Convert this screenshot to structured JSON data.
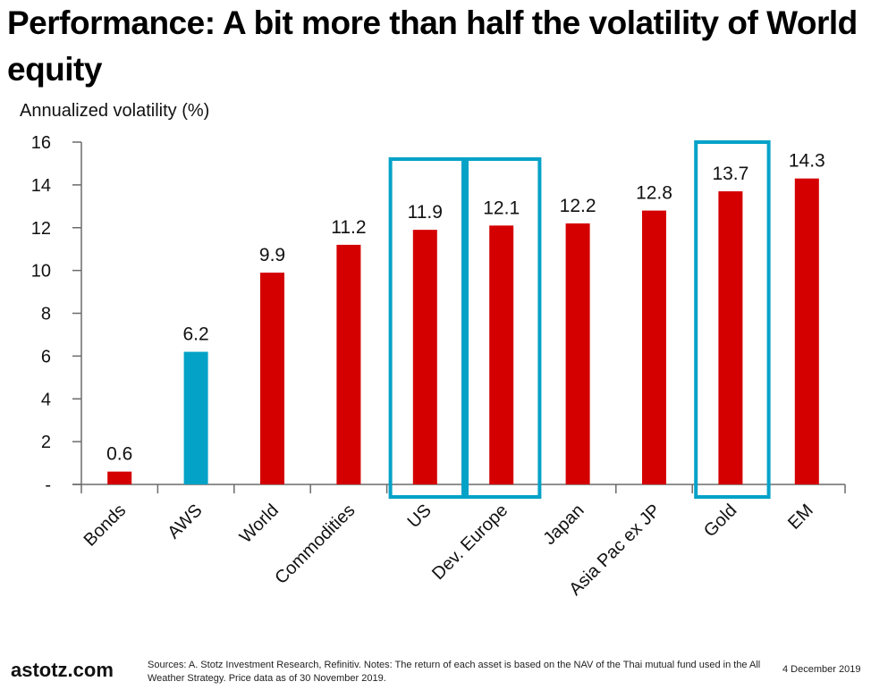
{
  "page": {
    "title": "Performance: A bit more than half the volatility of World equity",
    "footer": {
      "logo": "astotz.com",
      "notes": "Sources: A. Stotz Investment Research, Refinitiv. Notes: The return of each asset is based on the NAV of the Thai mutual fund used in the All Weather Strategy. Price data as of 30 November 2019.",
      "date": "4 December 2019"
    }
  },
  "chart_data": {
    "type": "bar",
    "title": "Performance: A bit more than half the volatility of World equity",
    "ylabel": "Annualized volatility (%)",
    "xlabel": "",
    "ylim": [
      0,
      16
    ],
    "yticks": [
      0,
      2,
      4,
      6,
      8,
      10,
      12,
      14,
      16
    ],
    "ytick_labels": [
      "-",
      "2",
      "4",
      "6",
      "8",
      "10",
      "12",
      "14",
      "16"
    ],
    "categories": [
      "Bonds",
      "AWS",
      "World",
      "Commodities",
      "US",
      "Dev. Europe",
      "Japan",
      "Asia Pac ex JP",
      "Gold",
      "EM"
    ],
    "values": [
      0.6,
      6.2,
      9.9,
      11.2,
      11.9,
      12.1,
      12.2,
      12.8,
      13.7,
      14.3
    ],
    "data_labels": [
      "0.6",
      "6.2",
      "9.9",
      "11.2",
      "11.9",
      "12.1",
      "12.2",
      "12.8",
      "13.7",
      "14.3"
    ],
    "bar_colors": [
      "#d40000",
      "#05a2c8",
      "#d40000",
      "#d40000",
      "#d40000",
      "#d40000",
      "#d40000",
      "#d40000",
      "#d40000",
      "#d40000"
    ],
    "highlighted_categories": [
      "US",
      "Dev. Europe",
      "Gold"
    ],
    "highlight_color": "#05a2c8",
    "grid": false,
    "legend": "none"
  }
}
